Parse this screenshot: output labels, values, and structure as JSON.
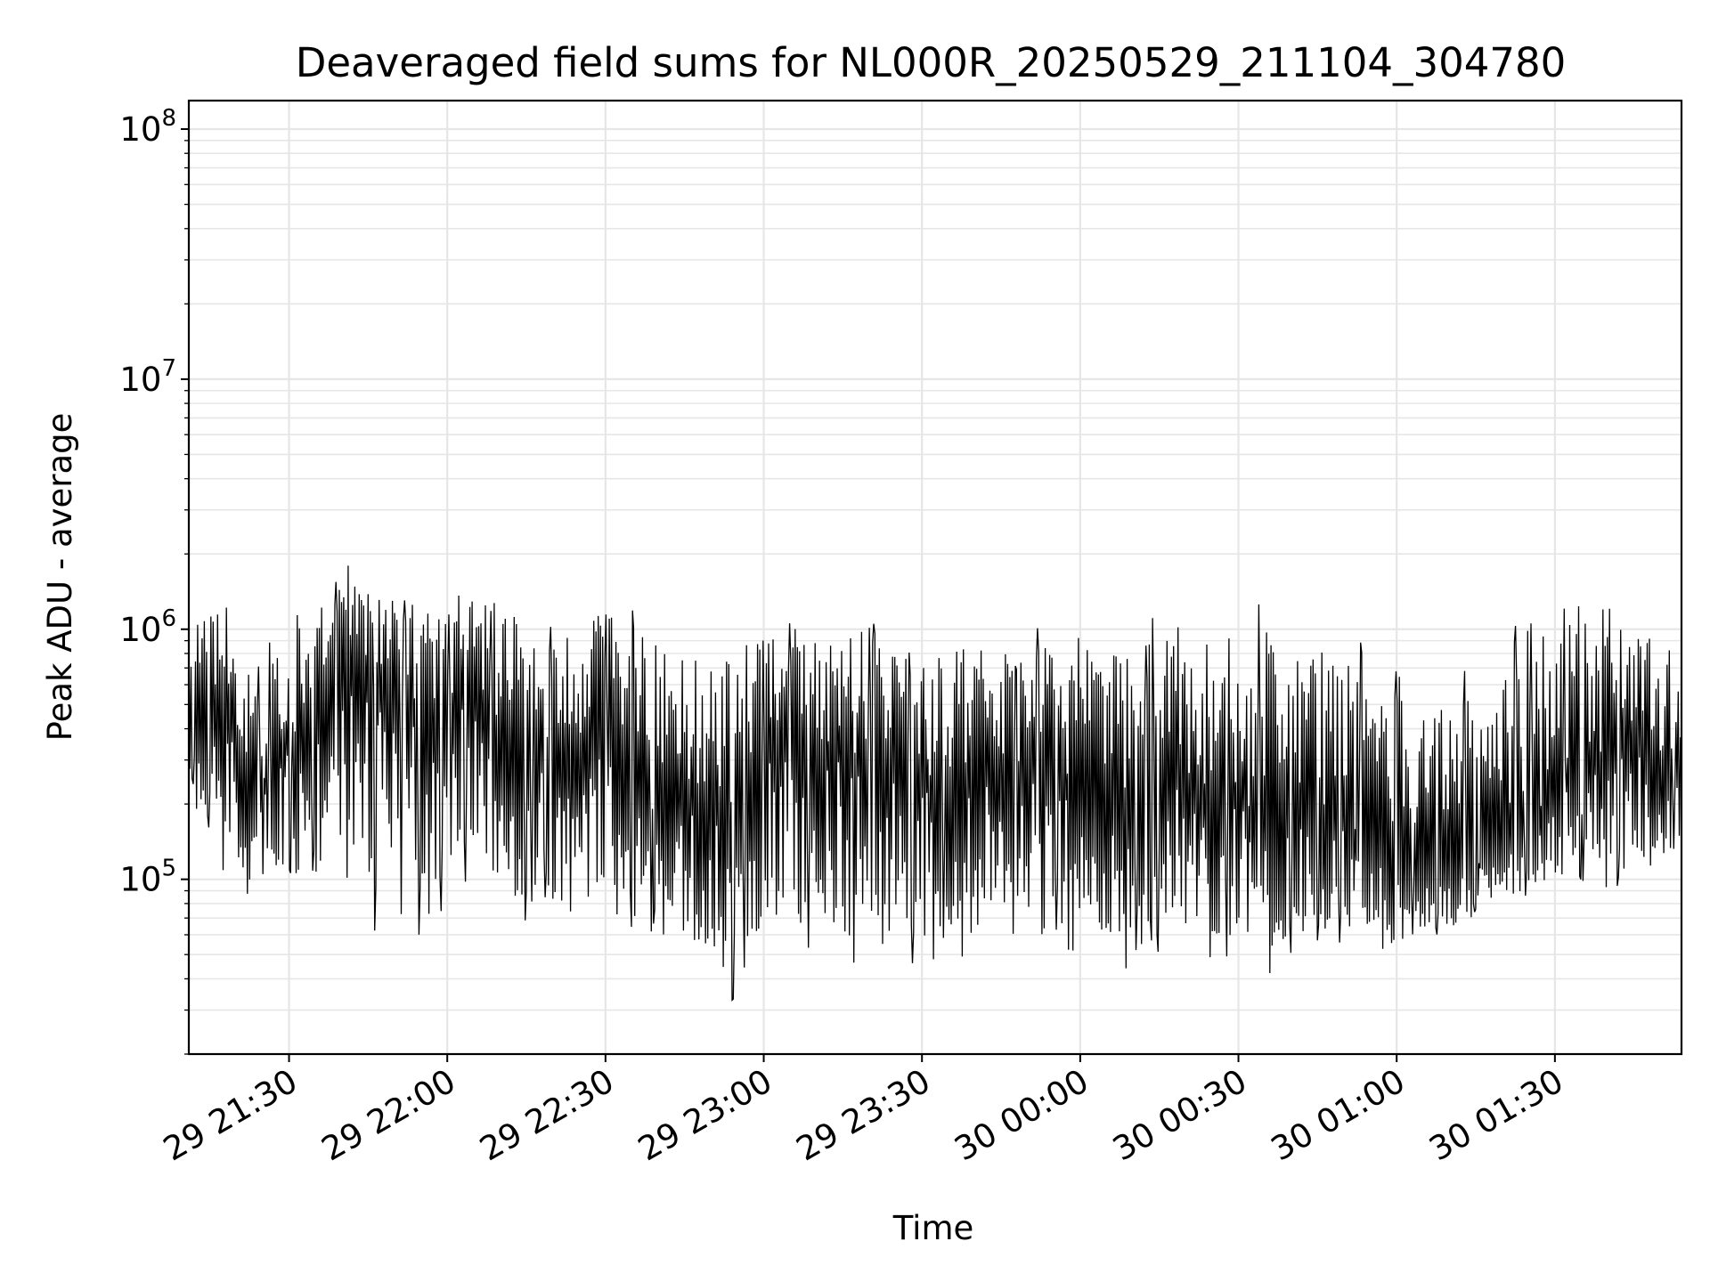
{
  "chart_data": {
    "type": "line",
    "title": "Deaveraged field sums for NL000R_20250529_211104_304780",
    "xlabel": "Time",
    "ylabel": "Peak ADU - average",
    "y_scale": "log",
    "ylim": [
      20000,
      130000000
    ],
    "xlim": [
      "2025-05-29 21:11",
      "2025-05-30 01:54"
    ],
    "grid": true,
    "line_color": "#000000",
    "x_ticks": [
      {
        "t": "2025-05-29 21:30",
        "label": "29 21:30"
      },
      {
        "t": "2025-05-29 22:00",
        "label": "29 22:00"
      },
      {
        "t": "2025-05-29 22:30",
        "label": "29 22:30"
      },
      {
        "t": "2025-05-29 23:00",
        "label": "29 23:00"
      },
      {
        "t": "2025-05-29 23:30",
        "label": "29 23:30"
      },
      {
        "t": "2025-05-30 00:00",
        "label": "30 00:00"
      },
      {
        "t": "2025-05-30 00:30",
        "label": "30 00:30"
      },
      {
        "t": "2025-05-30 01:00",
        "label": "30 01:00"
      },
      {
        "t": "2025-05-30 01:30",
        "label": "30 01:30"
      }
    ],
    "y_ticks": [
      {
        "value": 100000,
        "base": "10",
        "exp": "5"
      },
      {
        "value": 1000000,
        "base": "10",
        "exp": "6"
      },
      {
        "value": 10000000,
        "base": "10",
        "exp": "7"
      },
      {
        "value": 100000000,
        "base": "10",
        "exp": "8"
      }
    ],
    "series": [
      {
        "x": [
          "2025-05-29 21:11",
          "2025-05-29 21:17",
          "2025-05-29 21:23",
          "2025-05-29 21:29",
          "2025-05-29 21:35",
          "2025-05-29 21:41",
          "2025-05-29 21:47",
          "2025-05-29 21:53",
          "2025-05-29 21:59",
          "2025-05-29 22:05",
          "2025-05-29 22:11",
          "2025-05-29 22:17",
          "2025-05-29 22:23",
          "2025-05-29 22:29",
          "2025-05-29 22:35",
          "2025-05-29 22:41",
          "2025-05-29 22:47",
          "2025-05-29 22:53",
          "2025-05-29 22:59",
          "2025-05-29 23:05",
          "2025-05-29 23:11",
          "2025-05-29 23:17",
          "2025-05-29 23:23",
          "2025-05-29 23:29",
          "2025-05-29 23:35",
          "2025-05-29 23:41",
          "2025-05-29 23:47",
          "2025-05-29 23:53",
          "2025-05-29 23:59",
          "2025-05-30 00:05",
          "2025-05-30 00:11",
          "2025-05-30 00:17",
          "2025-05-30 00:23",
          "2025-05-30 00:29",
          "2025-05-30 00:35",
          "2025-05-30 00:41",
          "2025-05-30 00:47",
          "2025-05-30 00:53",
          "2025-05-30 00:59",
          "2025-05-30 01:05",
          "2025-05-30 01:11",
          "2025-05-30 01:17",
          "2025-05-30 01:23",
          "2025-05-30 01:29",
          "2025-05-30 01:35",
          "2025-05-30 01:41",
          "2025-05-30 01:47",
          "2025-05-30 01:53"
        ],
        "median": [
          500000,
          600000,
          200000,
          300000,
          500000,
          800000,
          700000,
          500000,
          400000,
          600000,
          400000,
          350000,
          300000,
          400000,
          300000,
          250000,
          200000,
          180000,
          250000,
          400000,
          350000,
          300000,
          300000,
          250000,
          250000,
          250000,
          250000,
          250000,
          250000,
          200000,
          200000,
          250000,
          200000,
          200000,
          180000,
          200000,
          180000,
          150000,
          120000,
          100000,
          100000,
          120000,
          150000,
          200000,
          250000,
          350000,
          300000,
          300000
        ],
        "high": [
          1600000,
          1400000,
          700000,
          1100000,
          1500000,
          1800000,
          1700000,
          1500000,
          1400000,
          1500000,
          1400000,
          1100000,
          1200000,
          1400000,
          1300000,
          1000000,
          900000,
          1000000,
          1100000,
          1200000,
          1100000,
          1300000,
          1000000,
          1000000,
          1000000,
          1100000,
          900000,
          1100000,
          1200000,
          1000000,
          1100000,
          1200000,
          1200000,
          1000000,
          1400000,
          1000000,
          900000,
          1000000,
          800000,
          600000,
          700000,
          700000,
          1400000,
          1300000,
          1400000,
          1600000,
          1200000,
          800000
        ],
        "low": [
          200000,
          110000,
          70000,
          80000,
          90000,
          100000,
          55000,
          60000,
          60000,
          100000,
          60000,
          70000,
          60000,
          70000,
          60000,
          60000,
          45000,
          30000,
          45000,
          45000,
          40000,
          45000,
          40000,
          45000,
          50000,
          45000,
          45000,
          50000,
          50000,
          50000,
          40000,
          50000,
          50000,
          45000,
          40000,
          50000,
          50000,
          50000,
          45000,
          55000,
          60000,
          70000,
          80000,
          90000,
          95000,
          90000,
          90000,
          120000
        ]
      }
    ]
  }
}
